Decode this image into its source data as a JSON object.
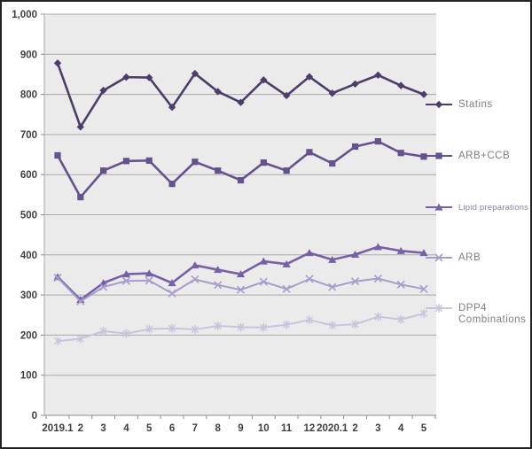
{
  "chart_data": {
    "type": "line",
    "title": "",
    "xlabel": "",
    "ylabel": "",
    "x_categories": [
      "2019.1",
      "2",
      "3",
      "4",
      "5",
      "6",
      "7",
      "8",
      "9",
      "10",
      "11",
      "12",
      "2020.1",
      "2",
      "3",
      "4",
      "5"
    ],
    "ylim": [
      0,
      1000
    ],
    "y_tick_step": 100,
    "y_tick_labels": [
      "0",
      "100",
      "200",
      "300",
      "400",
      "500",
      "600",
      "700",
      "800",
      "900",
      "1,000"
    ],
    "grid": "horizontal",
    "legend_position": "right",
    "colors": {
      "plot_bg": "#ebebeb",
      "gridline": "#a9a9a9",
      "axis_line": "#8c8c8c",
      "tick_label": "#3f3f3f",
      "legend_label": "#7f7f7f"
    },
    "series": [
      {
        "name": "Statins",
        "marker": "diamond",
        "color": "#4d3d6b",
        "values": [
          878,
          719,
          810,
          843,
          842,
          768,
          852,
          807,
          780,
          836,
          797,
          844,
          803,
          826,
          848,
          822,
          800
        ]
      },
      {
        "name": "ARB+CCB",
        "marker": "square",
        "color": "#66518f",
        "values": [
          648,
          544,
          610,
          634,
          635,
          577,
          632,
          610,
          586,
          630,
          610,
          656,
          628,
          670,
          683,
          654,
          645
        ]
      },
      {
        "name": "Lipid preparations",
        "marker": "triangle",
        "color": "#7760a8",
        "values": [
          345,
          288,
          330,
          352,
          354,
          330,
          374,
          363,
          352,
          384,
          377,
          405,
          388,
          401,
          420,
          410,
          405
        ]
      },
      {
        "name": "ARB",
        "marker": "x",
        "color": "#a79ccb",
        "values": [
          343,
          284,
          320,
          335,
          336,
          304,
          339,
          325,
          313,
          333,
          315,
          340,
          320,
          334,
          341,
          326,
          315
        ]
      },
      {
        "name": "DPP4 Combinations",
        "marker": "asterisk",
        "color": "#c9c3dd",
        "values": [
          185,
          191,
          210,
          204,
          215,
          217,
          214,
          223,
          220,
          219,
          226,
          238,
          224,
          227,
          246,
          239,
          254
        ]
      }
    ]
  }
}
